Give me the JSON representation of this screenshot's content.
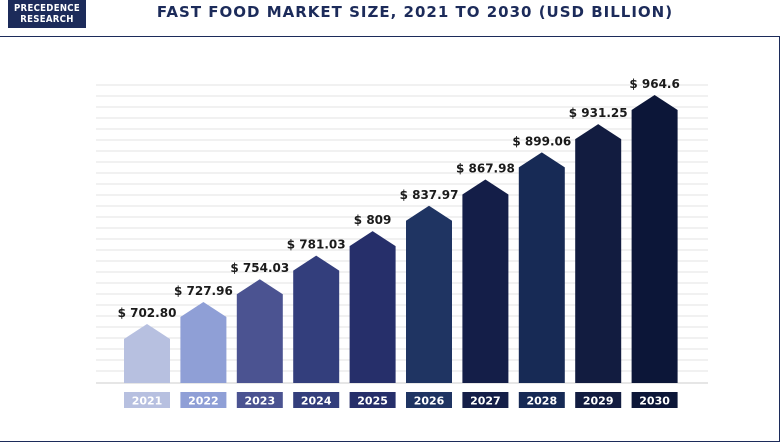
{
  "header": {
    "logo_line1": "PRECEDENCE",
    "logo_line2": "RESEARCH",
    "title": "FAST FOOD MARKET SIZE, 2021 TO 2030 (USD BILLION)"
  },
  "colors": {
    "brand": "#1c2b5a",
    "gridline": "#e3e3e3",
    "axis": "#cccccc",
    "label_text": "#1b1b1b",
    "bars": [
      "#b7c0e0",
      "#8f9fd6",
      "#4b5391",
      "#333e7c",
      "#262f6a",
      "#1f3462",
      "#141e48",
      "#172a55",
      "#121c40",
      "#0c1638"
    ]
  },
  "chart_data": {
    "type": "bar",
    "title": "FAST FOOD MARKET SIZE, 2021 TO 2030 (USD BILLION)",
    "xlabel": "",
    "ylabel": "",
    "categories": [
      "2021",
      "2022",
      "2023",
      "2024",
      "2025",
      "2026",
      "2027",
      "2028",
      "2029",
      "2030"
    ],
    "values": [
      702.8,
      727.96,
      754.03,
      781.03,
      809,
      837.97,
      867.98,
      899.06,
      931.25,
      964.6
    ],
    "value_labels": [
      "$ 702.80",
      "$ 727.96",
      "$ 754.03",
      "$ 781.03",
      "$ 809",
      "$ 837.97",
      "$ 867.98",
      "$ 899.06",
      "$ 931.25",
      "$ 964.6"
    ],
    "bar_shape": "house",
    "grid": true,
    "legend": "none"
  }
}
